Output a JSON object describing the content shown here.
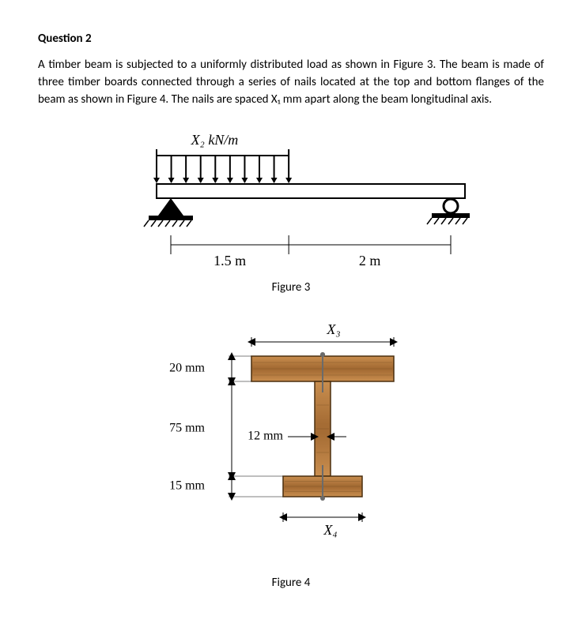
{
  "heading": "Question 2",
  "bodytext": "A timber beam is subjected to a uniformly distributed load as shown in Figure 3. The beam is made of three timber boards connected through a series of nails located at the top and bottom flanges of the beam as shown in Figure 4. The nails are spaced X₁ mm apart along the beam longitudinal axis.",
  "fig3": {
    "caption": "Figure 3",
    "load_label": "X₂ kN/m",
    "dim_left": "1.5 m",
    "dim_right": "2 m",
    "col_fill": "#ffffff",
    "col_stroke": "#000000",
    "arrow_count": 10
  },
  "fig4": {
    "caption": "Figure 4",
    "top_flange_h": "20 mm",
    "web_h": "75 mm",
    "bot_flange_h": "15 mm",
    "web_w": "12 mm",
    "top_flange_w": "X₃",
    "bot_flange_w": "X₄",
    "wood_light": "#c98e4f",
    "wood_dark": "#a56c34",
    "wood_stroke": "#4a2e0e",
    "nail_head": "#6b6b6b",
    "nail_shaft": "#6b6b6b"
  }
}
